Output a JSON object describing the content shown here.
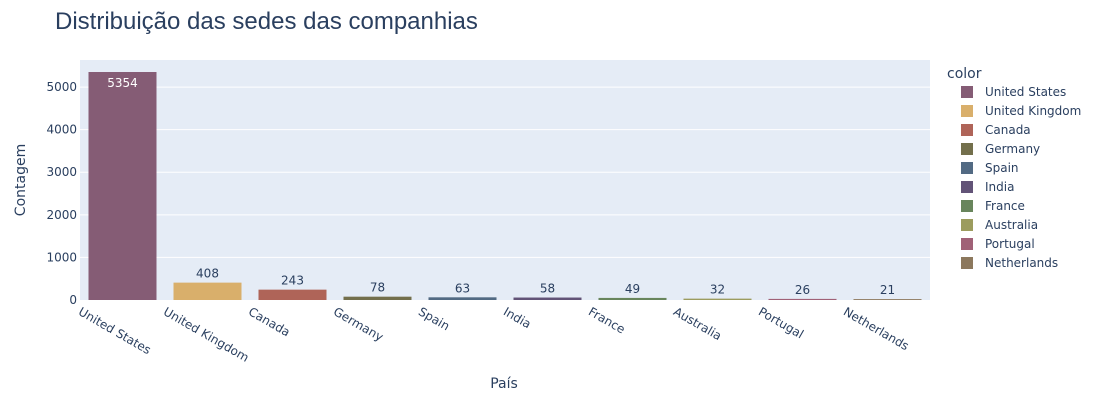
{
  "chart_data": {
    "type": "bar",
    "title": "Distribuição das sedes das companhias",
    "xlabel": "País",
    "ylabel": "Contagem",
    "categories": [
      "United States",
      "United Kingdom",
      "Canada",
      "Germany",
      "Spain",
      "India",
      "France",
      "Australia",
      "Portugal",
      "Netherlands"
    ],
    "values": [
      5354,
      408,
      243,
      78,
      63,
      58,
      49,
      32,
      26,
      21
    ],
    "colors": [
      "#855C75",
      "#D9AF6B",
      "#AF6458",
      "#736F4C",
      "#526A83",
      "#625377",
      "#68855C",
      "#9C9C5E",
      "#A06177",
      "#8C785D"
    ],
    "yticks": [
      0,
      1000,
      2000,
      3000,
      4000,
      5000
    ],
    "ylim": [
      0,
      5636
    ],
    "grid": true,
    "plot_background": "#E5ECF6",
    "legend": {
      "title": "color",
      "position": "right",
      "entries": [
        "United States",
        "United Kingdom",
        "Canada",
        "Germany",
        "Spain",
        "India",
        "France",
        "Australia",
        "Portugal",
        "Netherlands"
      ]
    }
  }
}
